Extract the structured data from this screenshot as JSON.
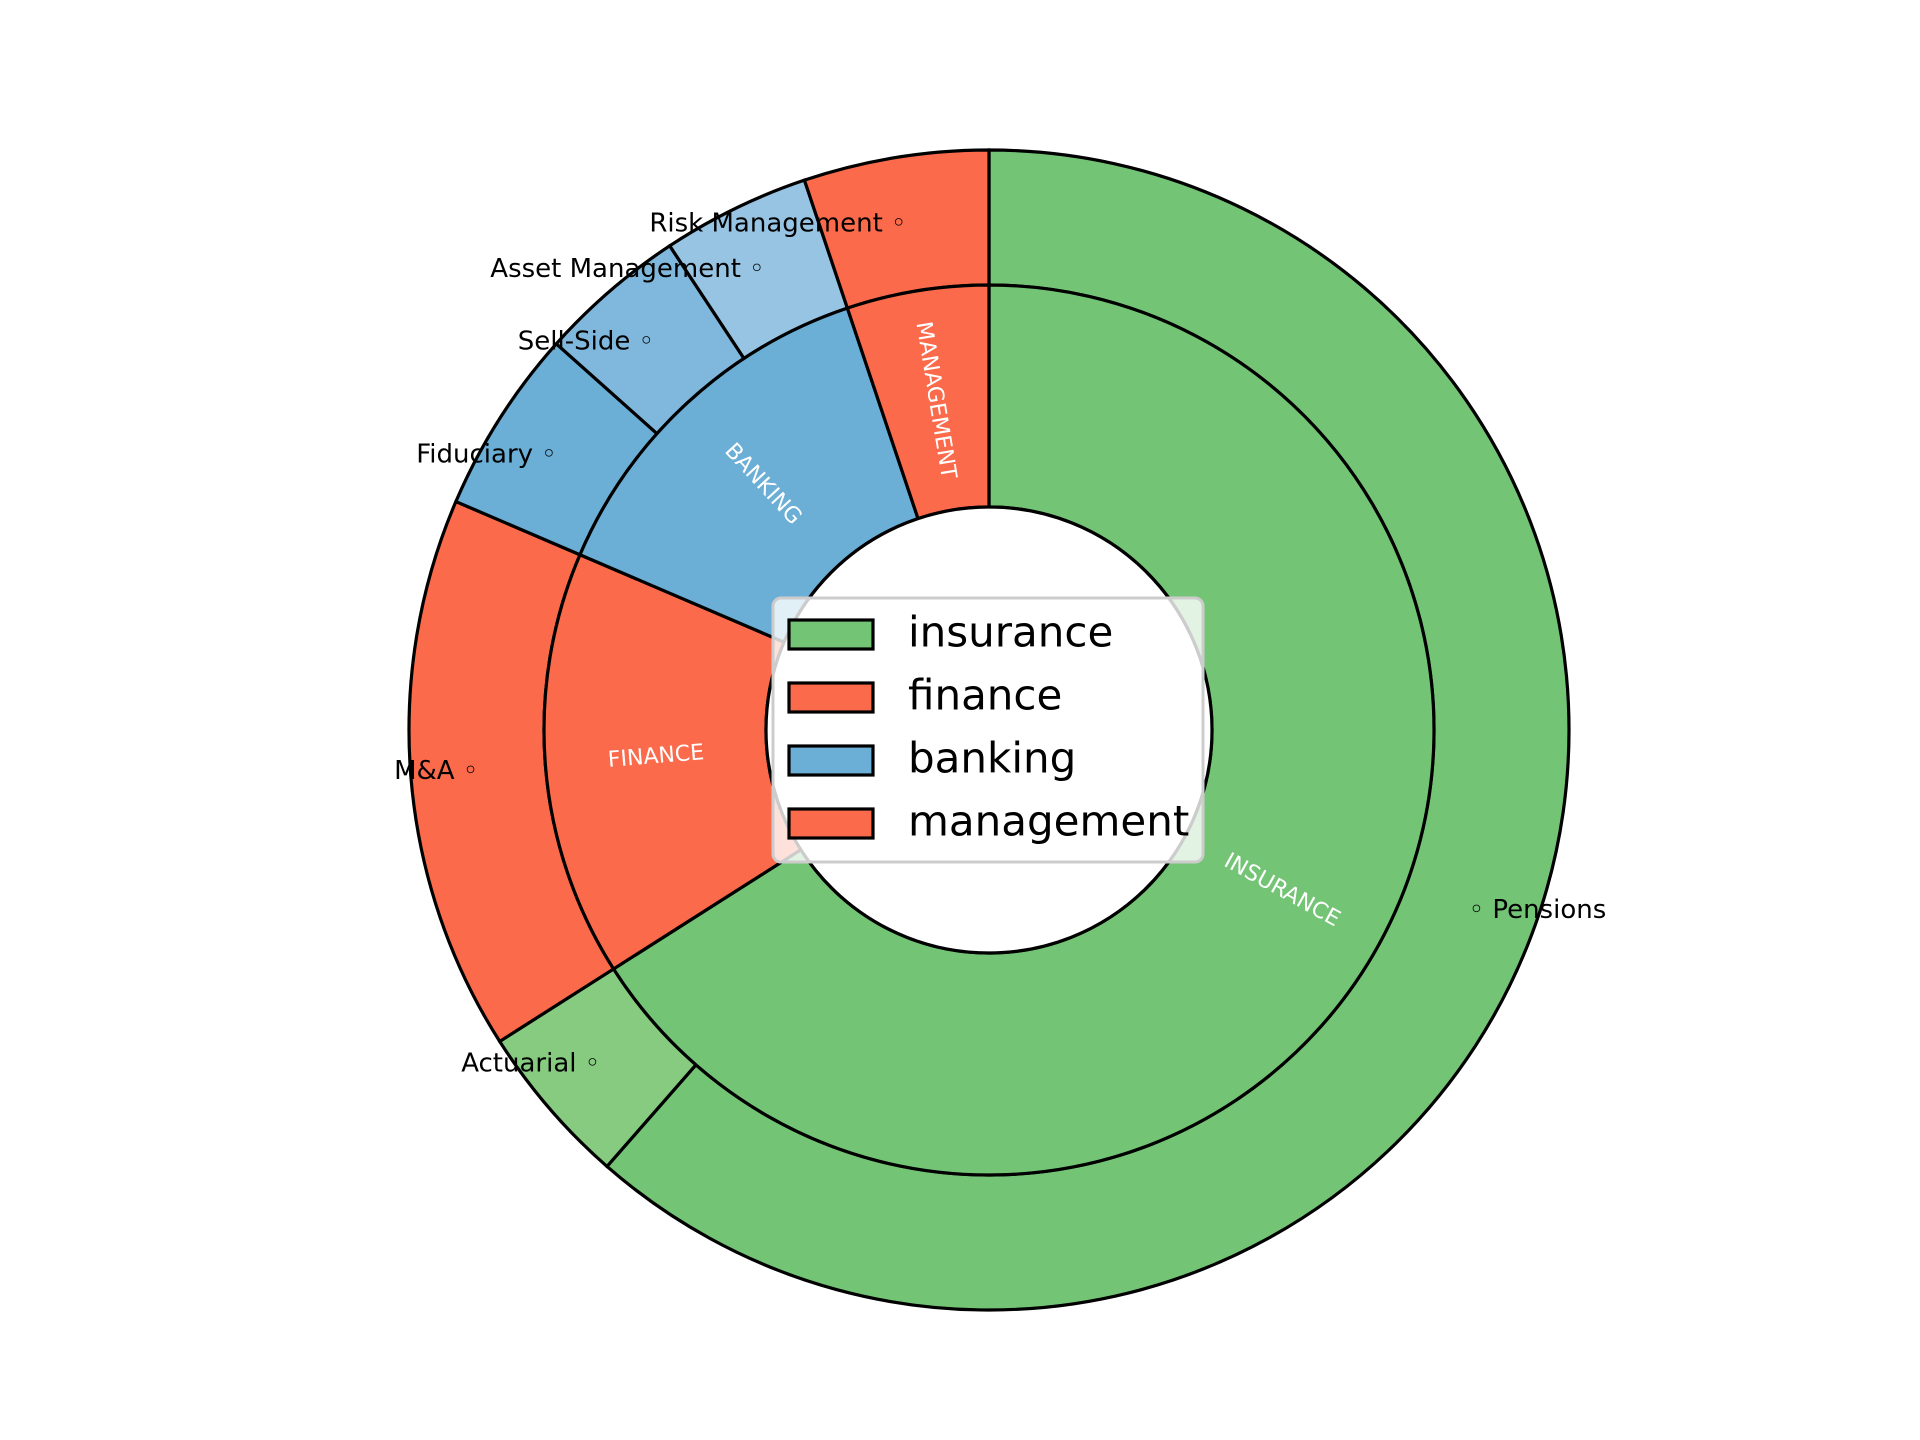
{
  "chart_data": {
    "type": "pie",
    "subtype": "nested-donut",
    "start_angle_deg": 90,
    "direction": "clockwise",
    "inner_ring": {
      "categories": [
        "INSURANCE",
        "FINANCE",
        "BANKING",
        "MANAGEMENT"
      ],
      "values": [
        64.0,
        15.0,
        13.0,
        5.0
      ],
      "colors": [
        "#74c476",
        "#fb6a4a",
        "#6baed6",
        "#fb6a4a"
      ]
    },
    "outer_ring": {
      "categories": [
        "Pensions",
        "Actuarial",
        "M&A",
        "Fiduciary",
        "Sell-Side",
        "Asset Management",
        "Risk Management"
      ],
      "values": [
        59.6,
        4.4,
        15.0,
        5.0,
        4.0,
        4.0,
        5.0
      ],
      "colors": [
        "#74c476",
        "#86cb80",
        "#fb6a4a",
        "#6baed6",
        "#80b7dc",
        "#96c4e2",
        "#fb6a4a"
      ],
      "parent": [
        "INSURANCE",
        "INSURANCE",
        "FINANCE",
        "BANKING",
        "BANKING",
        "BANKING",
        "MANAGEMENT"
      ]
    },
    "legend": {
      "position": "center",
      "entries": [
        {
          "label": "insurance",
          "color": "#74c476"
        },
        {
          "label": "finance",
          "color": "#fb6a4a"
        },
        {
          "label": "banking",
          "color": "#6baed6"
        },
        {
          "label": "management",
          "color": "#fb6a4a"
        }
      ]
    },
    "outer_label_marker": "◦"
  }
}
